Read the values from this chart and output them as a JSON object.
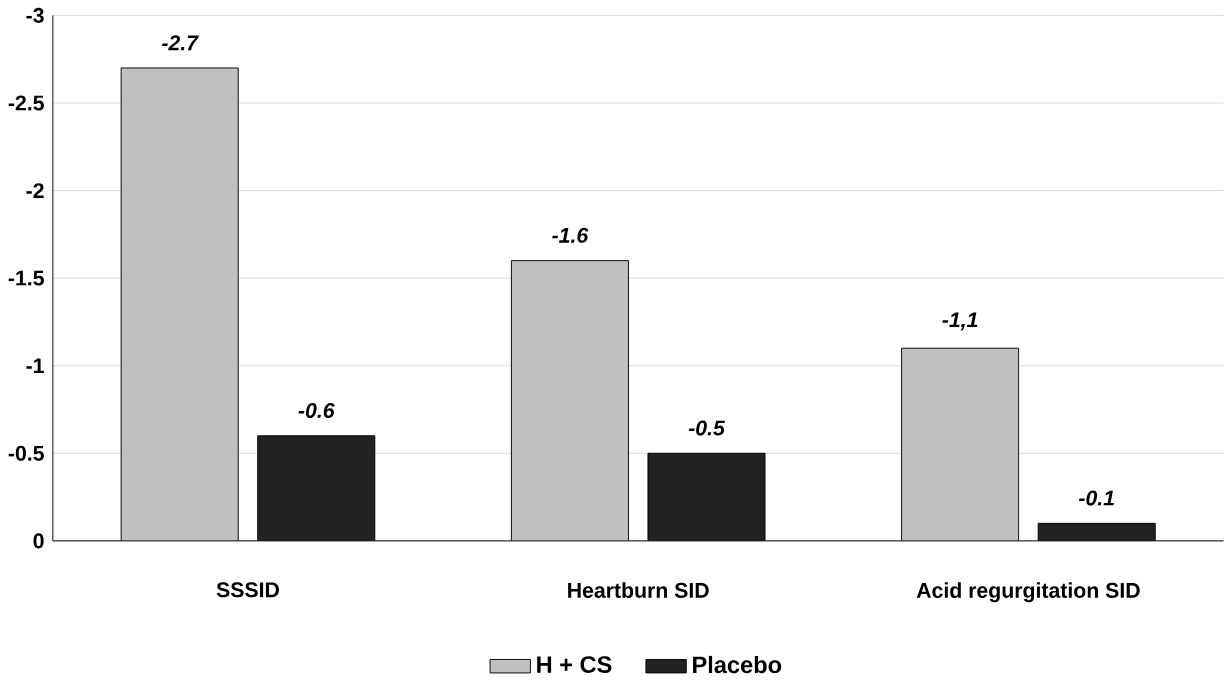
{
  "chart_data": {
    "type": "bar",
    "categories": [
      "SSSID",
      "Heartburn SID",
      "Acid regurgitation SID"
    ],
    "series": [
      {
        "name": "H + CS",
        "color": "#c0c0c0",
        "values": [
          -2.7,
          -1.6,
          -1.1
        ],
        "value_labels": [
          "-2.7",
          "-1.6",
          "-1,1"
        ]
      },
      {
        "name": "Placebo",
        "color": "#222222",
        "values": [
          -0.6,
          -0.5,
          -0.1
        ],
        "value_labels": [
          "-0.6",
          "-0.5",
          "-0.1"
        ]
      }
    ],
    "ylim": [
      0,
      -3
    ],
    "yticks": [
      0,
      -0.5,
      -1,
      -1.5,
      -2,
      -2.5,
      -3
    ],
    "grid": "y",
    "legend": "bottom"
  }
}
